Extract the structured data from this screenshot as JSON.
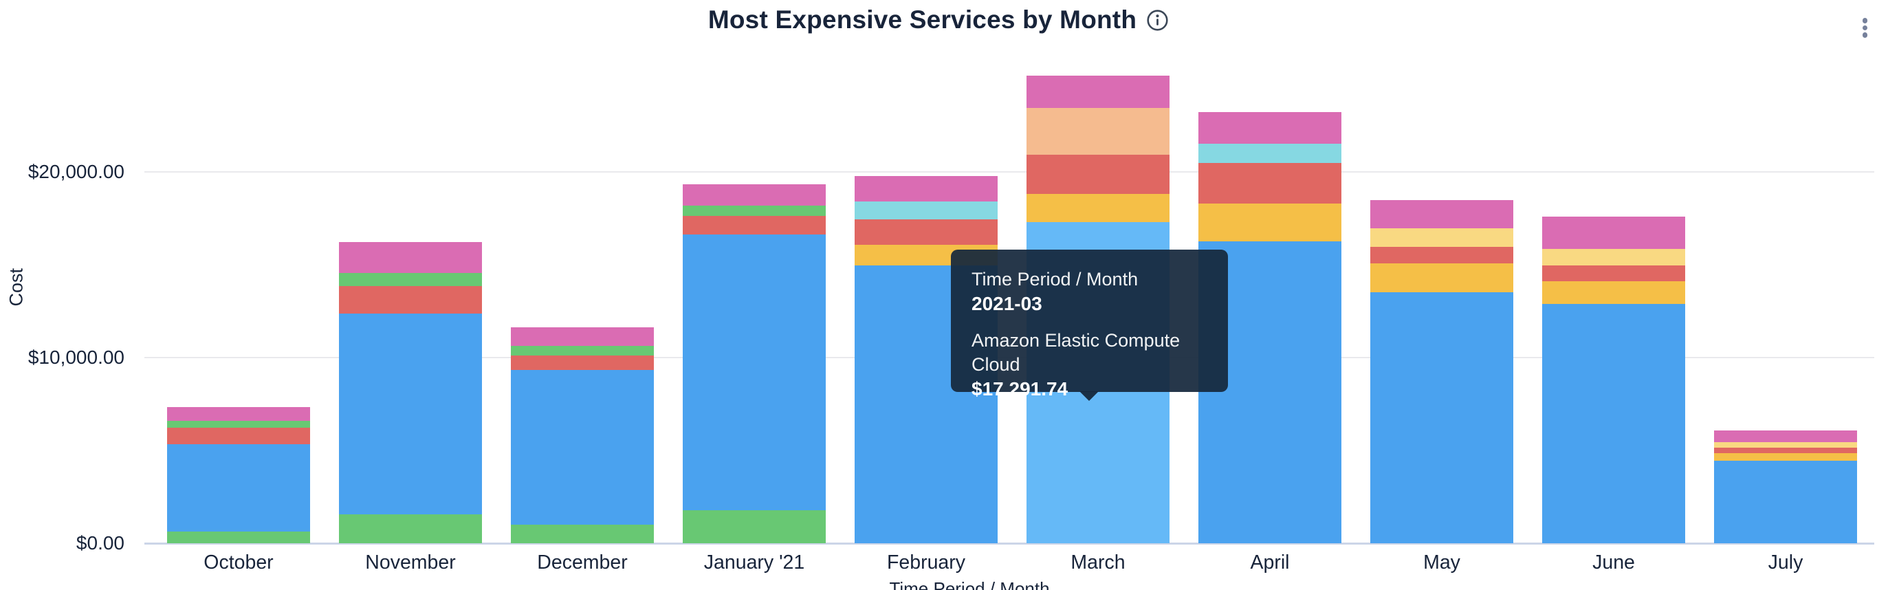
{
  "header": {
    "title": "Most Expensive Services by Month",
    "info_icon": "info-circle-icon",
    "menu_icon": "kebab-vertical-icon"
  },
  "tooltip": {
    "rows": [
      {
        "label": "Time Period / Month",
        "value": "2021-03"
      },
      {
        "label": "Amazon Elastic Compute Cloud",
        "value": "$17,291.74"
      }
    ]
  },
  "colors": {
    "blue": "#4AA2EF",
    "blue_hover": "#65B9F7",
    "green": "#68C873",
    "red": "#E06762",
    "pink": "#DA6CB3",
    "yellow": "#F5BF47",
    "pale_yellow": "#F9D982",
    "cyan": "#86D8E2",
    "peach": "#F5BB8F",
    "gridline": "#E9E9ED",
    "baseline": "#CCD5E8",
    "text": "#18243A"
  },
  "chart_data": {
    "type": "bar",
    "stacked": true,
    "title": "Most Expensive Services by Month",
    "xlabel": "Time Period / Month",
    "ylabel": "Cost",
    "ylim": [
      0,
      27500
    ],
    "grid": true,
    "legend": "none",
    "y_ticks": [
      {
        "label": "$0.00",
        "value": 0
      },
      {
        "label": "$10,000.00",
        "value": 10000
      },
      {
        "label": "$20,000.00",
        "value": 20000
      }
    ],
    "categories": [
      "October",
      "November",
      "December",
      "January '21",
      "February",
      "March",
      "April",
      "May",
      "June",
      "July"
    ],
    "named_series": [
      {
        "name": "Amazon Elastic Compute Cloud",
        "color_key": "blue",
        "named_via": "tooltip"
      }
    ],
    "hovered": {
      "month": "March",
      "color_key": "blue",
      "value": 17291.74
    },
    "bars": [
      {
        "month": "October",
        "total": 7335,
        "segments": [
          {
            "color": "green",
            "value": 620
          },
          {
            "color": "blue",
            "value": 4715
          },
          {
            "color": "red",
            "value": 890
          },
          {
            "color": "green",
            "value": 370
          },
          {
            "color": "pink",
            "value": 740
          }
        ]
      },
      {
        "month": "November",
        "total": 16234,
        "segments": [
          {
            "color": "green",
            "value": 1567
          },
          {
            "color": "blue",
            "value": 10804
          },
          {
            "color": "red",
            "value": 1481
          },
          {
            "color": "green",
            "value": 693
          },
          {
            "color": "pink",
            "value": 1689
          }
        ]
      },
      {
        "month": "December",
        "total": 11640,
        "segments": [
          {
            "color": "green",
            "value": 1011
          },
          {
            "color": "blue",
            "value": 8311
          },
          {
            "color": "red",
            "value": 800
          },
          {
            "color": "green",
            "value": 496
          },
          {
            "color": "pink",
            "value": 1022
          }
        ]
      },
      {
        "month": "January '21",
        "total": 19323,
        "segments": [
          {
            "color": "green",
            "value": 1767
          },
          {
            "color": "blue",
            "value": 14863
          },
          {
            "color": "red",
            "value": 989
          },
          {
            "color": "green",
            "value": 556
          },
          {
            "color": "pink",
            "value": 1148
          }
        ]
      },
      {
        "month": "February",
        "total": 19777,
        "segments": [
          {
            "color": "blue",
            "value": 14963
          },
          {
            "color": "yellow",
            "value": 1111
          },
          {
            "color": "red",
            "value": 1359
          },
          {
            "color": "cyan",
            "value": 963
          },
          {
            "color": "pink",
            "value": 1381
          }
        ]
      },
      {
        "month": "March",
        "total": 25193,
        "segments": [
          {
            "color": "blue",
            "value": 17291.74,
            "hover": true
          },
          {
            "color": "yellow",
            "value": 1506
          },
          {
            "color": "red",
            "value": 2111
          },
          {
            "color": "peach",
            "value": 2519
          },
          {
            "color": "pink",
            "value": 1765
          }
        ]
      },
      {
        "month": "April",
        "total": 23211,
        "segments": [
          {
            "color": "blue",
            "value": 16259
          },
          {
            "color": "yellow",
            "value": 2037
          },
          {
            "color": "red",
            "value": 2174
          },
          {
            "color": "cyan",
            "value": 1037
          },
          {
            "color": "pink",
            "value": 1704
          }
        ]
      },
      {
        "month": "May",
        "total": 18482,
        "segments": [
          {
            "color": "blue",
            "value": 13519
          },
          {
            "color": "yellow",
            "value": 1544
          },
          {
            "color": "red",
            "value": 889
          },
          {
            "color": "pale_yellow",
            "value": 1024
          },
          {
            "color": "pink",
            "value": 1506
          }
        ]
      },
      {
        "month": "June",
        "total": 17593,
        "segments": [
          {
            "color": "blue",
            "value": 12900
          },
          {
            "color": "yellow",
            "value": 1198
          },
          {
            "color": "red",
            "value": 865
          },
          {
            "color": "pale_yellow",
            "value": 900
          },
          {
            "color": "pink",
            "value": 1730
          }
        ]
      },
      {
        "month": "July",
        "total": 6073,
        "segments": [
          {
            "color": "blue",
            "value": 4444
          },
          {
            "color": "yellow",
            "value": 395
          },
          {
            "color": "red",
            "value": 309
          },
          {
            "color": "pale_yellow",
            "value": 285
          },
          {
            "color": "pink",
            "value": 640
          }
        ]
      }
    ]
  }
}
